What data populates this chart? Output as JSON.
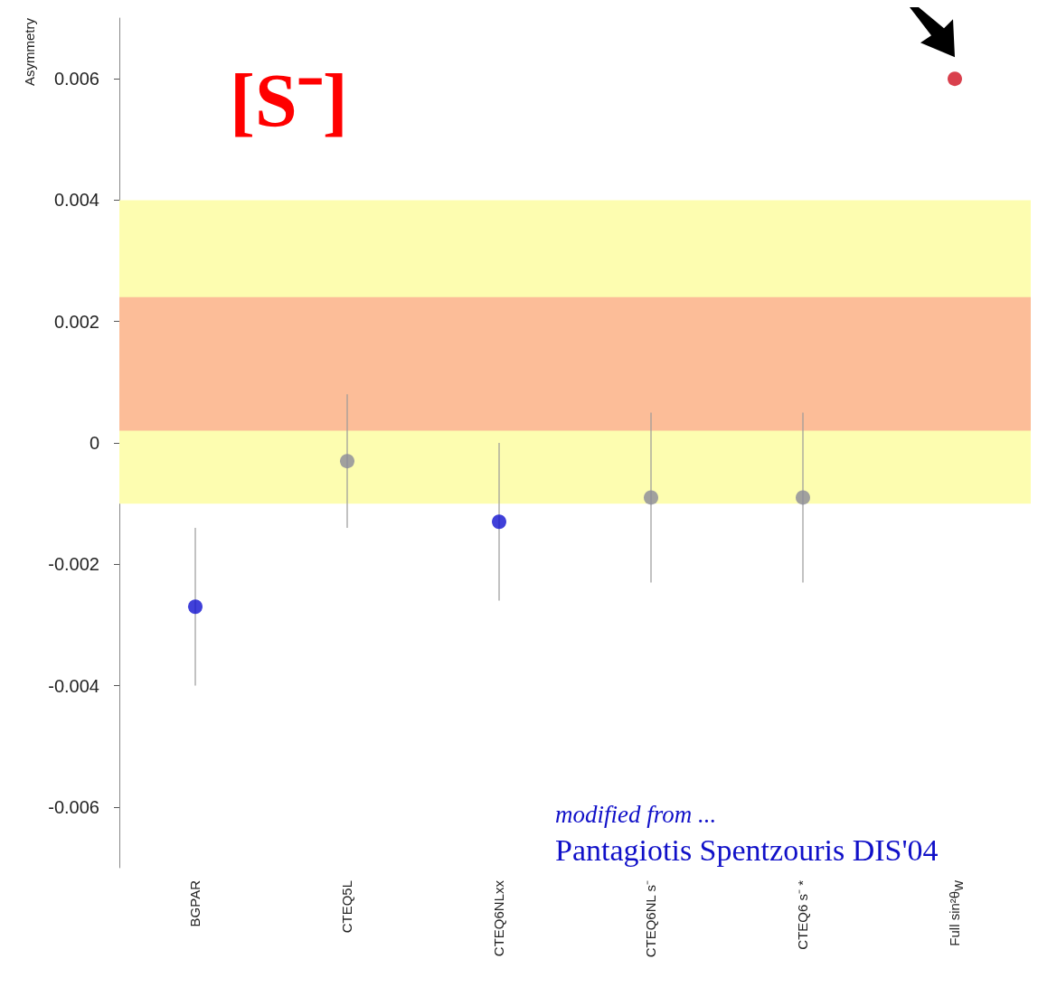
{
  "chart_data": {
    "type": "scatter",
    "ylabel": "Asymmetry",
    "categories": [
      "BGPAR",
      "CTEQ5L",
      "CTEQ6NLxx",
      "CTEQ6NL s⁻",
      "CTEQ6 s⁻ *",
      "Full sin²θ$_{W}$"
    ],
    "values": [
      -0.0027,
      -0.0003,
      -0.0013,
      -0.0009,
      -0.0009,
      0.006
    ],
    "colors": [
      "#1010d0",
      "#8a8a9a",
      "#1010d0",
      "#8a8a9a",
      "#8a8a9a",
      "#d01020"
    ],
    "errors": [
      [
        -0.004,
        -0.0014
      ],
      [
        -0.0014,
        0.0008
      ],
      [
        -0.0026,
        0.0
      ],
      [
        -0.0023,
        0.0005
      ],
      [
        -0.0023,
        0.0005
      ],
      null
    ],
    "ylim": [
      -0.007,
      0.007
    ],
    "yticks": [
      -0.006,
      -0.004,
      -0.002,
      0,
      0.002,
      0.004,
      0.006
    ],
    "bands": [
      {
        "axis": "y",
        "from": -0.001,
        "to": 0.004,
        "color": "#fdfdb0"
      },
      {
        "axis": "y",
        "from": 0.0002,
        "to": 0.0024,
        "color": "#fcbd98"
      }
    ],
    "marker": "circle",
    "annotations": [
      "[S⁻]",
      "modified from ...",
      "Pantagiotis Spentzouris  DIS'04"
    ]
  }
}
